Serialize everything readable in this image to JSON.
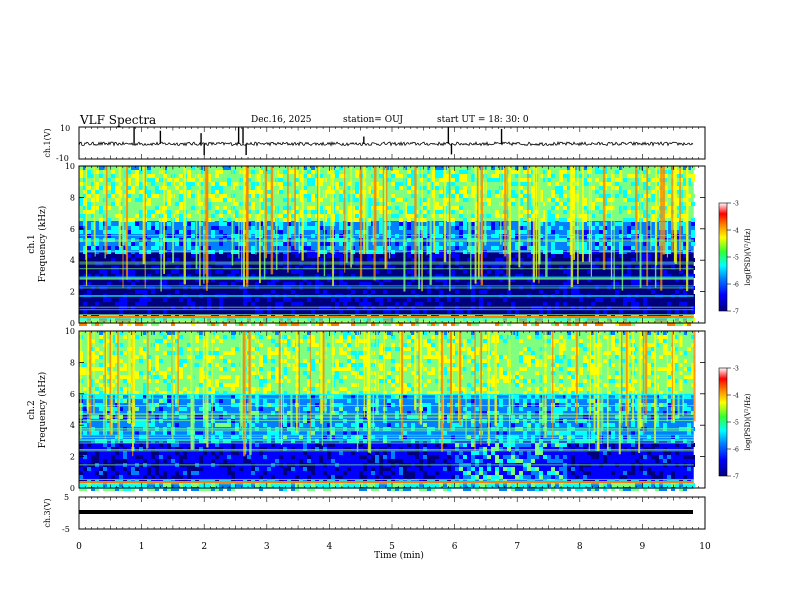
{
  "header": {
    "title": "VLF Spectra",
    "date": "Dec.16, 2025",
    "station": "station= OUJ",
    "start": "start  UT =   18: 30: 0"
  },
  "colors": {
    "background": "#ffffff",
    "axis": "#000000",
    "colormap": [
      "#00007f",
      "#0000ff",
      "#007fff",
      "#00ffff",
      "#7fff7f",
      "#ffff00",
      "#ff7f00",
      "#ff0000",
      "#ffffff"
    ]
  },
  "chart_data": [
    {
      "type": "line",
      "ylabel": "ch.1(V)",
      "ylim": [
        -10,
        10
      ],
      "yticks": [
        "10",
        "-10"
      ],
      "xlim": [
        0,
        10
      ],
      "description_series": "waveform oscillating about -0.5 V with spikes",
      "baseline": -0.5,
      "spikes_at_min": [
        0.88,
        1.3,
        1.95,
        2.0,
        2.55,
        2.62,
        2.67,
        4.55,
        5.9,
        5.95,
        6.75
      ],
      "grid": false
    },
    {
      "type": "heatmap",
      "ylabel": "ch.1\nFrequency  (kHz)",
      "ylim": [
        0,
        10
      ],
      "yticks": [
        "0",
        "2",
        "4",
        "6",
        "8",
        "10"
      ],
      "xlim": [
        0,
        9.82
      ],
      "colorbar": {
        "label": "log(PSD)(V²/Hz)",
        "range": [
          -7,
          -3
        ],
        "ticks": [
          "-3",
          "-4",
          "-5",
          "-6",
          "-7"
        ]
      },
      "bands": [
        {
          "from": 0,
          "to": 0.5,
          "level": 0.75
        },
        {
          "from": 0.5,
          "to": 4.5,
          "level": 0.15
        },
        {
          "from": 4.5,
          "to": 6.5,
          "level": 0.4
        },
        {
          "from": 6.5,
          "to": 10,
          "level": 0.62
        }
      ]
    },
    {
      "type": "heatmap",
      "ylabel": "ch.2\nFrequency  (kHz)",
      "ylim": [
        0,
        10
      ],
      "yticks": [
        "0",
        "2",
        "4",
        "6",
        "8",
        "10"
      ],
      "xlim": [
        0,
        9.82
      ],
      "colorbar": {
        "label": "log(PSD)(V²/Hz)",
        "range": [
          -7,
          -3
        ],
        "ticks": [
          "-3",
          "-4",
          "-5",
          "-6",
          "-7"
        ]
      },
      "bands": [
        {
          "from": 0,
          "to": 0.5,
          "level": 0.5
        },
        {
          "from": 0.5,
          "to": 3.0,
          "level": 0.18
        },
        {
          "from": 3.0,
          "to": 6.0,
          "level": 0.42
        },
        {
          "from": 6.0,
          "to": 10,
          "level": 0.65
        }
      ],
      "bright_region_min": [
        5.95,
        7.75
      ]
    },
    {
      "type": "line",
      "ylabel": "ch.3(V)",
      "ylim": [
        -5,
        5
      ],
      "yticks": [
        "5",
        "-5"
      ],
      "xlim": [
        0,
        10
      ],
      "xlabel": "Time  (min)",
      "xticks": [
        "0",
        "1",
        "2",
        "3",
        "4",
        "5",
        "6",
        "7",
        "8",
        "9",
        "10"
      ],
      "series": [
        {
          "x": [
            0,
            9.82
          ],
          "y": [
            0,
            0
          ]
        }
      ]
    }
  ]
}
